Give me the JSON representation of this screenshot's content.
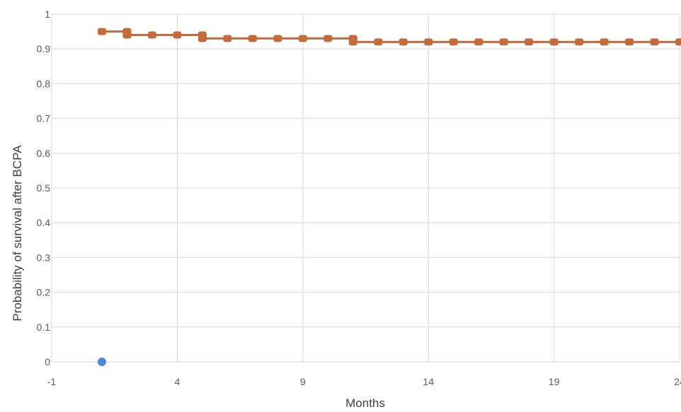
{
  "chart_data": {
    "type": "scatter",
    "title": "",
    "xlabel": "Months",
    "ylabel": "Probability of survival after BCPA",
    "xlim": [
      -1,
      24
    ],
    "ylim": [
      0,
      1
    ],
    "x_ticks": [
      -1,
      4,
      9,
      14,
      19,
      24
    ],
    "x_tick_labels": [
      "-1",
      "4",
      "9",
      "14",
      "19",
      "24"
    ],
    "y_ticks": [
      0,
      0.1,
      0.2,
      0.3,
      0.4,
      0.5,
      0.6,
      0.7,
      0.8,
      0.9,
      1
    ],
    "y_tick_labels": [
      "0",
      "0.1",
      "0.2",
      "0.3",
      "0.4",
      "0.5",
      "0.6",
      "0.7",
      "0.8",
      "0.9",
      "1"
    ],
    "grid": true,
    "legend": "none",
    "series": [
      {
        "color": "#4a86e8",
        "mode": "markers",
        "points": [
          [
            1,
            0
          ]
        ]
      },
      {
        "color": "#c36b3a",
        "mode": "steps-with-markers",
        "points": [
          [
            1,
            0.95
          ],
          [
            2,
            0.95
          ],
          [
            2,
            0.94
          ],
          [
            3,
            0.94
          ],
          [
            4,
            0.94
          ],
          [
            5,
            0.94
          ],
          [
            5,
            0.93
          ],
          [
            6,
            0.93
          ],
          [
            7,
            0.93
          ],
          [
            8,
            0.93
          ],
          [
            9,
            0.93
          ],
          [
            10,
            0.93
          ],
          [
            11,
            0.93
          ],
          [
            11,
            0.92
          ],
          [
            12,
            0.92
          ],
          [
            13,
            0.92
          ],
          [
            14,
            0.92
          ],
          [
            15,
            0.92
          ],
          [
            16,
            0.92
          ],
          [
            17,
            0.92
          ],
          [
            18,
            0.92
          ],
          [
            19,
            0.92
          ],
          [
            20,
            0.92
          ],
          [
            21,
            0.92
          ],
          [
            22,
            0.92
          ],
          [
            23,
            0.92
          ],
          [
            24,
            0.92
          ]
        ]
      }
    ]
  }
}
